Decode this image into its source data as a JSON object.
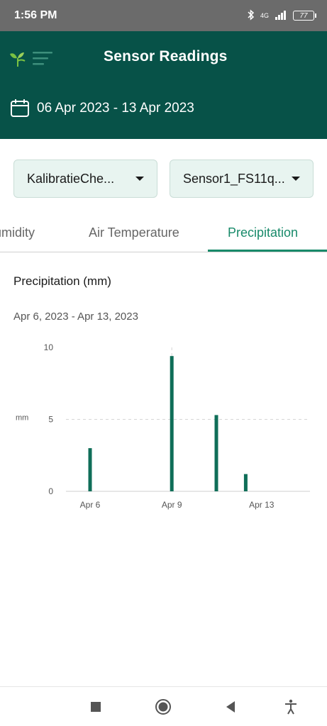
{
  "status_bar": {
    "time": "1:56 PM",
    "network": "4G",
    "battery": "77"
  },
  "app_bar": {
    "title": "Sensor Readings",
    "date_range": "06 Apr 2023 - 13 Apr 2023"
  },
  "filters": [
    {
      "value": "KalibratieChe..."
    },
    {
      "value": "Sensor1_FS11q..."
    }
  ],
  "tabs": [
    {
      "label": "Humidity",
      "active": false
    },
    {
      "label": "Air Temperature",
      "active": false
    },
    {
      "label": "Precipitation",
      "active": true
    }
  ],
  "chart_section": {
    "title": "Precipitation (mm)",
    "range": "Apr 6, 2023 - Apr 13, 2023"
  },
  "chart_data": {
    "type": "bar",
    "ylabel": "mm",
    "ylim": [
      0,
      10
    ],
    "yticks": [
      "0",
      "5",
      "10"
    ],
    "xticks": [
      "Apr 6",
      "Apr 9",
      "Apr 13"
    ],
    "grid": "dashed",
    "bar_color": "#0f6e58",
    "series": [
      {
        "points": [
          {
            "x": "2023-04-06",
            "y": 3.0
          },
          {
            "x": "2023-04-09",
            "y": 9.4
          },
          {
            "x": "2023-04-11",
            "y": 5.3
          },
          {
            "x": "2023-04-12",
            "y": 1.2
          }
        ]
      }
    ]
  },
  "nav_bar": {
    "icons": [
      "square-icon",
      "home-circle-icon",
      "back-triangle-icon",
      "accessibility-icon"
    ]
  },
  "colors": {
    "primary": "#075248",
    "accent": "#188a6a",
    "status_bar": "#6b6b6b"
  }
}
